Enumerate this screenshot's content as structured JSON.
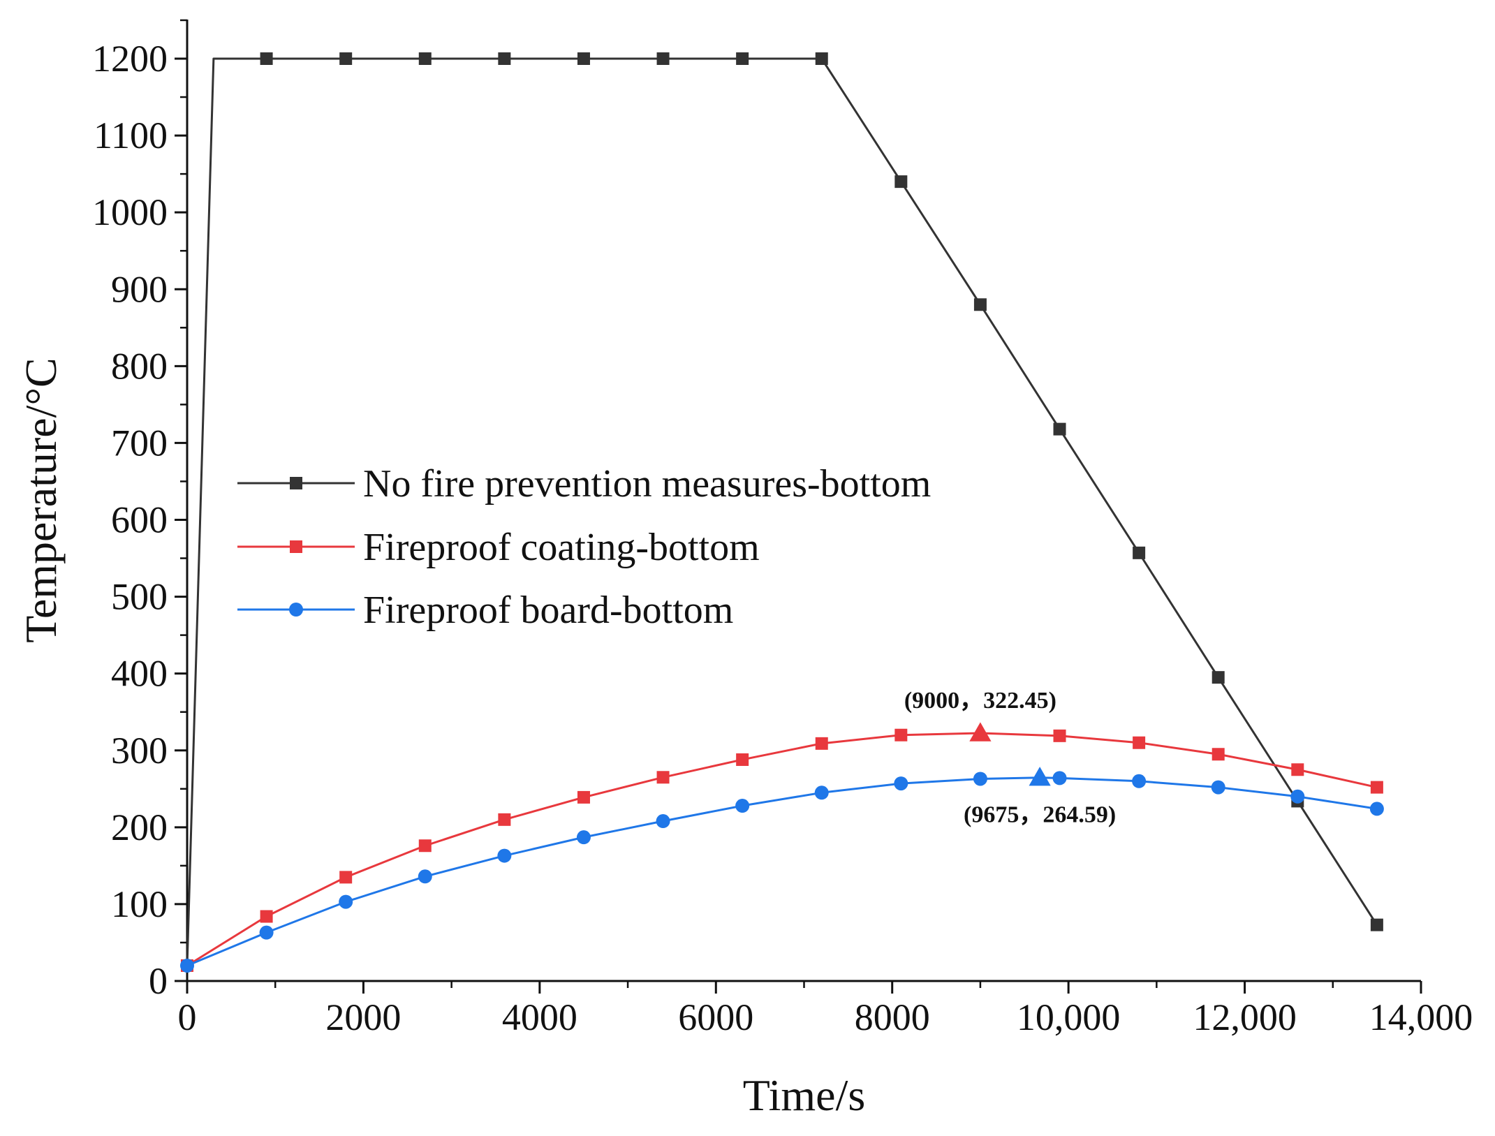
{
  "chart_data": {
    "type": "line",
    "title": "",
    "xlabel": "Time/s",
    "ylabel": "Temperature/°C",
    "xlim": [
      0,
      14000
    ],
    "ylim": [
      0,
      1250
    ],
    "grid": false,
    "legend_position": "middle-left",
    "x_ticks": [
      {
        "value": 0,
        "label": "0"
      },
      {
        "value": 2000,
        "label": "2000"
      },
      {
        "value": 4000,
        "label": "4000"
      },
      {
        "value": 6000,
        "label": "6000"
      },
      {
        "value": 8000,
        "label": "8000"
      },
      {
        "value": 10000,
        "label": "10,000"
      },
      {
        "value": 12000,
        "label": "12,000"
      },
      {
        "value": 14000,
        "label": "14,000"
      }
    ],
    "y_ticks": [
      {
        "value": 0,
        "label": "0"
      },
      {
        "value": 100,
        "label": "100"
      },
      {
        "value": 200,
        "label": "200"
      },
      {
        "value": 300,
        "label": "300"
      },
      {
        "value": 400,
        "label": "400"
      },
      {
        "value": 500,
        "label": "500"
      },
      {
        "value": 600,
        "label": "600"
      },
      {
        "value": 700,
        "label": "700"
      },
      {
        "value": 800,
        "label": "800"
      },
      {
        "value": 900,
        "label": "900"
      },
      {
        "value": 1000,
        "label": "1000"
      },
      {
        "value": 1100,
        "label": "1100"
      },
      {
        "value": 1200,
        "label": "1200"
      }
    ],
    "series": [
      {
        "name": "No fire prevention measures-bottom",
        "color": "#333333",
        "marker": "square",
        "line_x": [
          0,
          300,
          900,
          1800,
          2700,
          3600,
          4500,
          5400,
          6300,
          7200,
          8100,
          9000,
          9900,
          10800,
          11700,
          12600,
          13500
        ],
        "line_y": [
          20,
          1200,
          1200,
          1200,
          1200,
          1200,
          1200,
          1200,
          1200,
          1200,
          1040,
          880,
          718,
          557,
          395,
          234,
          73
        ],
        "marker_x": [
          900,
          1800,
          2700,
          3600,
          4500,
          5400,
          6300,
          7200,
          8100,
          9000,
          9900,
          10800,
          11700,
          12600,
          13500
        ],
        "marker_y": [
          1200,
          1200,
          1200,
          1200,
          1200,
          1200,
          1200,
          1200,
          1040,
          880,
          718,
          557,
          395,
          234,
          73
        ]
      },
      {
        "name": "Fireproof coating-bottom",
        "color": "#e8383d",
        "marker": "square",
        "line_x": [
          0,
          900,
          1800,
          2700,
          3600,
          4500,
          5400,
          6300,
          7200,
          8100,
          9000,
          9900,
          10800,
          11700,
          12600,
          13500
        ],
        "line_y": [
          20,
          84,
          135,
          176,
          210,
          239,
          265,
          288,
          309,
          320,
          322.45,
          319,
          310,
          295,
          275,
          252
        ],
        "marker_x": [
          0,
          900,
          1800,
          2700,
          3600,
          4500,
          5400,
          6300,
          7200,
          8100,
          9900,
          10800,
          11700,
          12600,
          13500
        ],
        "marker_y": [
          20,
          84,
          135,
          176,
          210,
          239,
          265,
          288,
          309,
          320,
          319,
          310,
          295,
          275,
          252
        ]
      },
      {
        "name": "Fireproof board-bottom",
        "color": "#1f77e8",
        "marker": "circle",
        "line_x": [
          0,
          900,
          1800,
          2700,
          3600,
          4500,
          5400,
          6300,
          7200,
          8100,
          9000,
          9675,
          9900,
          10800,
          11700,
          12600,
          13500
        ],
        "line_y": [
          20,
          63,
          103,
          136,
          163,
          187,
          208,
          228,
          245,
          257,
          263,
          264.59,
          264,
          260,
          252,
          240,
          224
        ],
        "marker_x": [
          0,
          900,
          1800,
          2700,
          3600,
          4500,
          5400,
          6300,
          7200,
          8100,
          9000,
          9900,
          10800,
          11700,
          12600,
          13500
        ],
        "marker_y": [
          20,
          63,
          103,
          136,
          163,
          187,
          208,
          228,
          245,
          257,
          263,
          264,
          260,
          252,
          240,
          224
        ]
      }
    ],
    "annotations": [
      {
        "text": "(9000，322.45)",
        "x": 9000,
        "y": 322.45,
        "color": "#e8383d",
        "marker": "triangle",
        "label_side": "above"
      },
      {
        "text": "(9675，264.59)",
        "x": 9675,
        "y": 264.59,
        "color": "#1f77e8",
        "marker": "triangle",
        "label_side": "below"
      }
    ]
  }
}
